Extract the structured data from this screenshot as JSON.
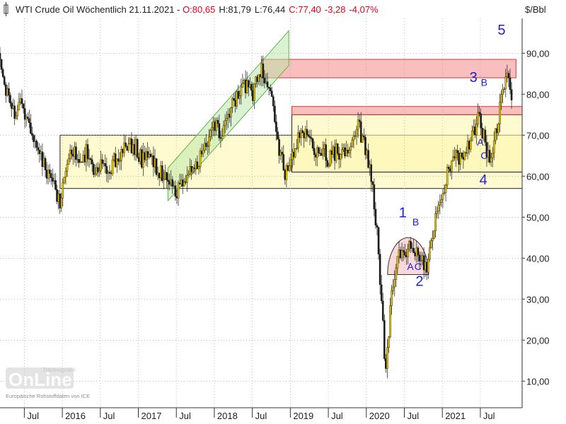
{
  "header": {
    "title": "WTI Crude Oil Wöchentlich",
    "date": "21.11.2021",
    "open": "O:80,65",
    "high": "H:81,79",
    "low": "L:76,44",
    "close": "C:77,40",
    "change": "-3,28",
    "change_pct": "-4,07%"
  },
  "watermark": {
    "brand": "OnLine",
    "sub": "Tradesignal",
    "reg": "®",
    "source": "Europäische Rohstoffdaten von ICE"
  },
  "colors": {
    "up": "#e8c400",
    "down": "#1a1a1a",
    "negative": "#e3001b",
    "wave_label": "#1f1fd1",
    "resistance_box": "#f7a8a8",
    "range_box": "#fff6b0",
    "channel": "#b8e6a6",
    "dome": "#f6c9c9"
  },
  "chart_data": {
    "type": "candlestick",
    "title": "WTI Crude Oil Wöchentlich",
    "ylabel": "$/Bbl",
    "ylim": [
      3.5,
      98.5
    ],
    "xlim": [
      2015.18,
      2022.05
    ],
    "y_ticks": [
      10,
      20,
      30,
      40,
      50,
      60,
      70,
      80,
      90
    ],
    "y_tick_labels": [
      "10,00",
      "20,00",
      "30,00",
      "40,00",
      "50,00",
      "60,00",
      "70,00",
      "80,00",
      "90,00"
    ],
    "x_ticks": [
      {
        "x": 2015.5,
        "label": "Jul"
      },
      {
        "x": 2016.0,
        "label": "2016"
      },
      {
        "x": 2016.5,
        "label": "Jul"
      },
      {
        "x": 2017.0,
        "label": "2017"
      },
      {
        "x": 2017.5,
        "label": "Jul"
      },
      {
        "x": 2018.0,
        "label": "2018"
      },
      {
        "x": 2018.5,
        "label": "Jul"
      },
      {
        "x": 2019.0,
        "label": "2019"
      },
      {
        "x": 2019.5,
        "label": "Jul"
      },
      {
        "x": 2020.0,
        "label": "2020"
      },
      {
        "x": 2020.5,
        "label": "Jul"
      },
      {
        "x": 2021.0,
        "label": "2021"
      },
      {
        "x": 2021.5,
        "label": "Jul"
      }
    ],
    "price_path": [
      [
        2015.18,
        90.0
      ],
      [
        2015.25,
        82.0
      ],
      [
        2015.35,
        75.0
      ],
      [
        2015.45,
        78.0
      ],
      [
        2015.55,
        72.0
      ],
      [
        2015.62,
        68.0
      ],
      [
        2015.72,
        65.0
      ],
      [
        2015.82,
        60.0
      ],
      [
        2015.9,
        57.0
      ],
      [
        2015.98,
        53.0
      ],
      [
        2016.05,
        63.0
      ],
      [
        2016.1,
        67.0
      ],
      [
        2016.18,
        66.0
      ],
      [
        2016.25,
        63.0
      ],
      [
        2016.32,
        66.0
      ],
      [
        2016.42,
        62.0
      ],
      [
        2016.52,
        64.0
      ],
      [
        2016.6,
        61.0
      ],
      [
        2016.68,
        64.0
      ],
      [
        2016.78,
        66.0
      ],
      [
        2016.88,
        68.0
      ],
      [
        2016.97,
        67.0
      ],
      [
        2017.05,
        64.0
      ],
      [
        2017.15,
        65.0
      ],
      [
        2017.25,
        62.0
      ],
      [
        2017.35,
        60.0
      ],
      [
        2017.45,
        57.0
      ],
      [
        2017.52,
        56.0
      ],
      [
        2017.6,
        60.0
      ],
      [
        2017.7,
        62.0
      ],
      [
        2017.8,
        64.0
      ],
      [
        2017.9,
        68.0
      ],
      [
        2018.0,
        72.0
      ],
      [
        2018.1,
        71.0
      ],
      [
        2018.2,
        76.0
      ],
      [
        2018.3,
        79.0
      ],
      [
        2018.4,
        82.0
      ],
      [
        2018.5,
        80.0
      ],
      [
        2018.6,
        86.0
      ],
      [
        2018.68,
        84.0
      ],
      [
        2018.76,
        78.0
      ],
      [
        2018.84,
        68.0
      ],
      [
        2018.92,
        61.0
      ],
      [
        2019.0,
        63.0
      ],
      [
        2019.08,
        68.0
      ],
      [
        2019.16,
        72.0
      ],
      [
        2019.24,
        69.0
      ],
      [
        2019.32,
        66.0
      ],
      [
        2019.42,
        67.0
      ],
      [
        2019.5,
        64.0
      ],
      [
        2019.6,
        66.0
      ],
      [
        2019.7,
        65.0
      ],
      [
        2019.8,
        68.0
      ],
      [
        2019.9,
        72.0
      ],
      [
        2020.0,
        66.0
      ],
      [
        2020.05,
        62.0
      ],
      [
        2020.1,
        54.0
      ],
      [
        2020.15,
        44.0
      ],
      [
        2020.2,
        30.0
      ],
      [
        2020.25,
        12.0
      ],
      [
        2020.3,
        24.0
      ],
      [
        2020.35,
        34.0
      ],
      [
        2020.42,
        40.0
      ],
      [
        2020.5,
        42.0
      ],
      [
        2020.58,
        43.0
      ],
      [
        2020.65,
        42.0
      ],
      [
        2020.72,
        40.0
      ],
      [
        2020.8,
        38.0
      ],
      [
        2020.86,
        44.0
      ],
      [
        2020.92,
        50.0
      ],
      [
        2021.0,
        55.0
      ],
      [
        2021.08,
        62.0
      ],
      [
        2021.16,
        66.0
      ],
      [
        2021.24,
        64.0
      ],
      [
        2021.32,
        67.0
      ],
      [
        2021.4,
        70.0
      ],
      [
        2021.48,
        75.0
      ],
      [
        2021.56,
        68.0
      ],
      [
        2021.62,
        64.0
      ],
      [
        2021.7,
        70.0
      ],
      [
        2021.78,
        80.0
      ],
      [
        2021.84,
        84.0
      ],
      [
        2021.89,
        81.0
      ],
      [
        2021.92,
        77.0
      ]
    ],
    "zones": [
      {
        "kind": "range",
        "x0": 2015.97,
        "x1": 2022.05,
        "y0": 57.0,
        "y1": 70.0
      },
      {
        "kind": "range",
        "x0": 2019.02,
        "x1": 2022.05,
        "y0": 61.0,
        "y1": 75.0
      },
      {
        "kind": "resistance",
        "x0": 2018.62,
        "x1": 2021.97,
        "y0": 84.0,
        "y1": 88.5
      },
      {
        "kind": "resistance",
        "x0": 2019.02,
        "x1": 2022.05,
        "y0": 75.0,
        "y1": 77.0
      }
    ],
    "channel": {
      "x0": 2017.39,
      "x1": 2018.98,
      "lower0": 54.0,
      "lower1": 87.0,
      "upper0": 62.0,
      "upper1": 95.5
    },
    "dome": {
      "cx": 2020.55,
      "cy": 36.0,
      "rx": 0.27,
      "ry": 9.0
    },
    "wave_labels": [
      {
        "text": "1",
        "x": 2020.48,
        "y": 50.0,
        "size": "large"
      },
      {
        "text": "2",
        "x": 2020.7,
        "y": 33.2,
        "size": "large"
      },
      {
        "text": "3",
        "x": 2021.41,
        "y": 83.0,
        "size": "large"
      },
      {
        "text": "4",
        "x": 2021.54,
        "y": 58.0,
        "size": "large"
      },
      {
        "text": "5",
        "x": 2021.78,
        "y": 94.5,
        "size": "large"
      },
      {
        "text": "A",
        "x": 2020.58,
        "y": 37.1,
        "size": "small"
      },
      {
        "text": "B",
        "x": 2020.65,
        "y": 48.0,
        "size": "small"
      },
      {
        "text": "C",
        "x": 2020.68,
        "y": 37.1,
        "size": "small"
      },
      {
        "text": "A",
        "x": 2021.5,
        "y": 67.5,
        "size": "small"
      },
      {
        "text": "B",
        "x": 2021.55,
        "y": 82.0,
        "size": "small"
      },
      {
        "text": "C",
        "x": 2021.55,
        "y": 64.2,
        "size": "small"
      }
    ],
    "grid": true,
    "legend": "none"
  }
}
